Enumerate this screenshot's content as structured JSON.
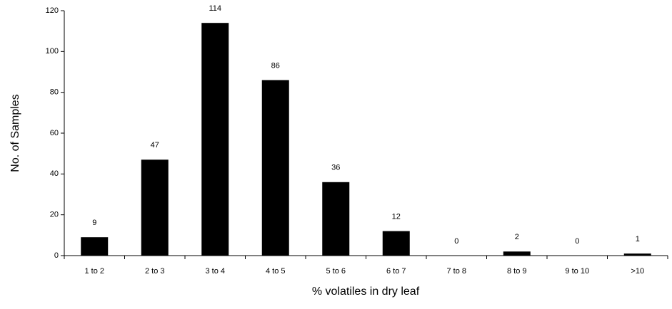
{
  "chart_data": {
    "type": "bar",
    "categories": [
      "1 to 2",
      "2 to 3",
      "3 to 4",
      "4 to 5",
      "5 to 6",
      "6 to 7",
      "7 to 8",
      "8 to 9",
      "9 to 10",
      ">10"
    ],
    "values": [
      9,
      47,
      114,
      86,
      36,
      12,
      0,
      2,
      0,
      1
    ],
    "color": "#000000",
    "ylim": [
      0,
      120
    ],
    "yticks": [
      0,
      20,
      40,
      60,
      80,
      100,
      120
    ],
    "x_label": "% volatiles in dry leaf",
    "y_label": "No. of Samples"
  }
}
